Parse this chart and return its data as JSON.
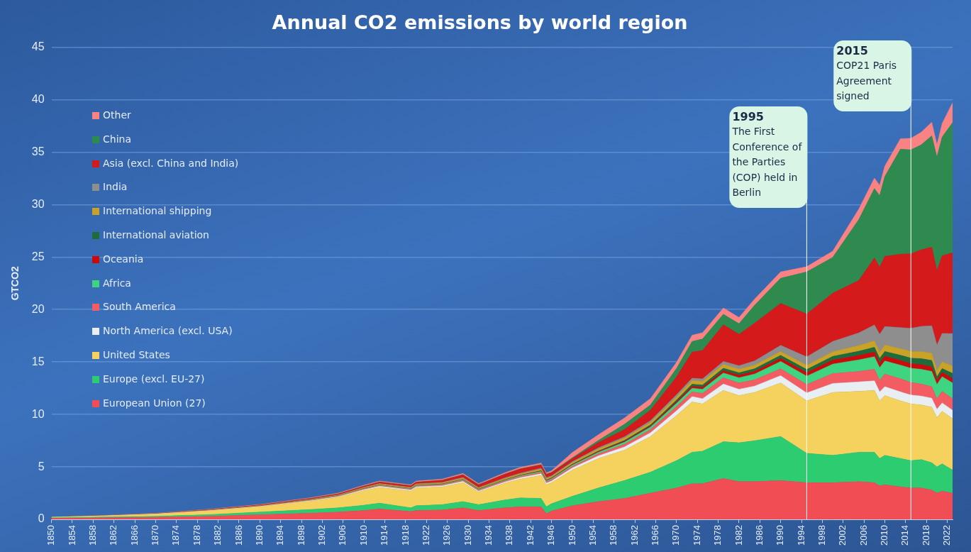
{
  "chart_data": {
    "type": "area",
    "title": "Annual CO2 emissions by world region",
    "ylabel": "GTCO2",
    "stacked": true,
    "grid": "y",
    "legend": "top left",
    "x": [
      1850,
      1860,
      1870,
      1880,
      1890,
      1900,
      1905,
      1910,
      1913,
      1919,
      1920,
      1925,
      1929,
      1932,
      1937,
      1940,
      1944,
      1945,
      1946,
      1950,
      1955,
      1960,
      1965,
      1970,
      1973,
      1975,
      1979,
      1982,
      1985,
      1990,
      1995,
      2000,
      2005,
      2008,
      2009,
      2010,
      2013,
      2015,
      2017,
      2019,
      2020,
      2021,
      2023
    ],
    "xlim": [
      1850,
      2023
    ],
    "xticks": [
      1850,
      1854,
      1858,
      1862,
      1866,
      1870,
      1874,
      1878,
      1882,
      1886,
      1890,
      1894,
      1898,
      1902,
      1906,
      1910,
      1914,
      1918,
      1922,
      1926,
      1930,
      1934,
      1938,
      1942,
      1946,
      1950,
      1954,
      1958,
      1962,
      1966,
      1970,
      1974,
      1978,
      1982,
      1986,
      1990,
      1994,
      1998,
      2002,
      2006,
      2010,
      2014,
      2018,
      2022
    ],
    "ylim": [
      0,
      45
    ],
    "yticks": [
      0,
      5,
      10,
      15,
      20,
      25,
      30,
      35,
      40,
      45
    ],
    "series": [
      {
        "name": "European Union (27)",
        "color": "#f04d55",
        "values": [
          0.1,
          0.15,
          0.2,
          0.3,
          0.45,
          0.6,
          0.7,
          0.85,
          1.0,
          0.75,
          0.85,
          0.9,
          1.1,
          0.85,
          1.1,
          1.2,
          1.2,
          0.55,
          0.8,
          1.3,
          1.7,
          2.0,
          2.5,
          3.0,
          3.4,
          3.4,
          3.9,
          3.6,
          3.6,
          3.7,
          3.5,
          3.5,
          3.6,
          3.5,
          3.2,
          3.3,
          3.1,
          3.0,
          3.0,
          2.8,
          2.5,
          2.7,
          2.5
        ]
      },
      {
        "name": "Europe (excl. EU-27)",
        "color": "#2ecc71",
        "values": [
          0.05,
          0.08,
          0.1,
          0.15,
          0.25,
          0.35,
          0.4,
          0.5,
          0.55,
          0.35,
          0.45,
          0.5,
          0.6,
          0.55,
          0.75,
          0.85,
          0.8,
          0.65,
          0.7,
          0.9,
          1.3,
          1.7,
          2.0,
          2.6,
          3.0,
          3.1,
          3.5,
          3.7,
          3.9,
          4.2,
          2.8,
          2.6,
          2.8,
          2.9,
          2.6,
          2.8,
          2.7,
          2.6,
          2.7,
          2.6,
          2.5,
          2.6,
          2.2
        ]
      },
      {
        "name": "United States",
        "color": "#f5d25e",
        "values": [
          0.05,
          0.1,
          0.2,
          0.35,
          0.5,
          0.8,
          1.0,
          1.4,
          1.5,
          1.6,
          1.7,
          1.7,
          1.8,
          1.2,
          1.6,
          1.8,
          2.2,
          2.1,
          2.0,
          2.5,
          2.8,
          2.9,
          3.4,
          4.3,
          4.8,
          4.5,
          4.9,
          4.5,
          4.6,
          5.1,
          5.0,
          6.0,
          5.8,
          5.9,
          5.5,
          5.7,
          5.5,
          5.4,
          5.2,
          5.3,
          4.7,
          5.0,
          4.9
        ]
      },
      {
        "name": "North America (excl. USA)",
        "color": "#e8eef2",
        "values": [
          0,
          0,
          0.01,
          0.02,
          0.03,
          0.05,
          0.06,
          0.08,
          0.1,
          0.1,
          0.1,
          0.1,
          0.12,
          0.1,
          0.1,
          0.12,
          0.15,
          0.15,
          0.15,
          0.2,
          0.25,
          0.3,
          0.35,
          0.45,
          0.5,
          0.5,
          0.6,
          0.6,
          0.6,
          0.7,
          0.75,
          0.85,
          0.9,
          0.9,
          0.85,
          0.85,
          0.85,
          0.85,
          0.85,
          0.85,
          0.8,
          0.8,
          0.8
        ]
      },
      {
        "name": "South America",
        "color": "#f25c62",
        "values": [
          0,
          0,
          0,
          0.01,
          0.02,
          0.03,
          0.04,
          0.05,
          0.06,
          0.06,
          0.07,
          0.08,
          0.09,
          0.08,
          0.1,
          0.1,
          0.12,
          0.12,
          0.13,
          0.15,
          0.2,
          0.25,
          0.3,
          0.4,
          0.45,
          0.5,
          0.6,
          0.6,
          0.6,
          0.65,
          0.8,
          0.95,
          1.0,
          1.1,
          1.1,
          1.2,
          1.25,
          1.2,
          1.15,
          1.1,
          1.0,
          1.1,
          1.1
        ]
      },
      {
        "name": "Africa",
        "color": "#3fd47f",
        "values": [
          0,
          0,
          0,
          0.01,
          0.01,
          0.02,
          0.03,
          0.04,
          0.05,
          0.05,
          0.05,
          0.06,
          0.07,
          0.07,
          0.08,
          0.09,
          0.1,
          0.1,
          0.1,
          0.12,
          0.15,
          0.2,
          0.25,
          0.3,
          0.35,
          0.4,
          0.45,
          0.5,
          0.55,
          0.7,
          0.8,
          0.9,
          1.1,
          1.2,
          1.2,
          1.25,
          1.3,
          1.35,
          1.4,
          1.45,
          1.35,
          1.4,
          1.5
        ]
      },
      {
        "name": "Oceania",
        "color": "#cc0a0a",
        "values": [
          0,
          0,
          0,
          0.01,
          0.01,
          0.01,
          0.01,
          0.02,
          0.02,
          0.02,
          0.02,
          0.03,
          0.03,
          0.03,
          0.03,
          0.04,
          0.05,
          0.05,
          0.05,
          0.06,
          0.07,
          0.09,
          0.1,
          0.15,
          0.18,
          0.2,
          0.22,
          0.24,
          0.25,
          0.3,
          0.33,
          0.38,
          0.42,
          0.45,
          0.45,
          0.45,
          0.44,
          0.44,
          0.45,
          0.44,
          0.42,
          0.42,
          0.42
        ]
      },
      {
        "name": "International aviation",
        "color": "#1f6b3b",
        "values": [
          0,
          0,
          0,
          0,
          0,
          0,
          0,
          0,
          0,
          0,
          0,
          0,
          0,
          0,
          0,
          0.01,
          0.02,
          0.02,
          0.02,
          0.03,
          0.05,
          0.08,
          0.1,
          0.17,
          0.2,
          0.2,
          0.23,
          0.23,
          0.25,
          0.28,
          0.3,
          0.35,
          0.4,
          0.45,
          0.43,
          0.45,
          0.5,
          0.52,
          0.56,
          0.6,
          0.3,
          0.35,
          0.5
        ]
      },
      {
        "name": "International shipping",
        "color": "#c9a227",
        "values": [
          0,
          0,
          0.01,
          0.02,
          0.03,
          0.05,
          0.06,
          0.08,
          0.1,
          0.08,
          0.1,
          0.1,
          0.12,
          0.1,
          0.12,
          0.12,
          0.15,
          0.15,
          0.12,
          0.15,
          0.2,
          0.22,
          0.25,
          0.3,
          0.35,
          0.35,
          0.38,
          0.35,
          0.35,
          0.37,
          0.4,
          0.45,
          0.55,
          0.62,
          0.6,
          0.62,
          0.63,
          0.65,
          0.68,
          0.7,
          0.63,
          0.65,
          0.68
        ]
      },
      {
        "name": "India",
        "color": "#8e8e8e",
        "values": [
          0,
          0,
          0,
          0.01,
          0.01,
          0.02,
          0.02,
          0.03,
          0.03,
          0.04,
          0.04,
          0.05,
          0.06,
          0.05,
          0.06,
          0.07,
          0.09,
          0.09,
          0.08,
          0.08,
          0.1,
          0.12,
          0.16,
          0.2,
          0.22,
          0.24,
          0.27,
          0.32,
          0.4,
          0.58,
          0.8,
          0.98,
          1.2,
          1.5,
          1.7,
          1.75,
          2.0,
          2.2,
          2.4,
          2.6,
          2.4,
          2.7,
          3.1
        ]
      },
      {
        "name": "Asia (excl. China and India)",
        "color": "#d41a1a",
        "values": [
          0.01,
          0.02,
          0.03,
          0.04,
          0.06,
          0.08,
          0.1,
          0.12,
          0.15,
          0.15,
          0.16,
          0.2,
          0.25,
          0.25,
          0.35,
          0.4,
          0.3,
          0.3,
          0.3,
          0.3,
          0.5,
          0.7,
          1.0,
          1.7,
          2.5,
          2.7,
          3.5,
          3.0,
          3.6,
          4.0,
          4.1,
          4.6,
          5.0,
          6.4,
          6.4,
          6.7,
          7.0,
          7.1,
          7.3,
          7.5,
          7.1,
          7.4,
          7.7
        ]
      },
      {
        "name": "China",
        "color": "#2f8a50",
        "values": [
          0,
          0,
          0,
          0,
          0,
          0.01,
          0.01,
          0.01,
          0.01,
          0.02,
          0.02,
          0.02,
          0.03,
          0.03,
          0.03,
          0.03,
          0.04,
          0.03,
          0.03,
          0.08,
          0.2,
          0.5,
          0.5,
          0.8,
          1.0,
          1.1,
          1.0,
          1.0,
          1.7,
          2.4,
          4.0,
          3.4,
          5.8,
          6.6,
          6.8,
          7.6,
          10.0,
          9.9,
          10.0,
          10.6,
          10.8,
          11.3,
          12.4
        ]
      },
      {
        "name": "Other",
        "color": "#f98383",
        "values": [
          0.01,
          0.02,
          0.03,
          0.04,
          0.05,
          0.06,
          0.07,
          0.08,
          0.09,
          0.08,
          0.09,
          0.1,
          0.11,
          0.1,
          0.12,
          0.13,
          0.15,
          0.13,
          0.15,
          0.5,
          0.55,
          0.6,
          0.6,
          0.6,
          0.6,
          0.6,
          0.6,
          0.6,
          0.6,
          0.6,
          0.5,
          0.6,
          1.0,
          1.0,
          1.0,
          1.0,
          1.0,
          1.1,
          1.2,
          1.3,
          1.2,
          1.3,
          1.9
        ]
      }
    ],
    "ref_lines": [
      {
        "axis": "x",
        "value": 1995,
        "label": "1995 The First Conference of the Parties (COP) held in Berlin",
        "color": "#ffffff"
      },
      {
        "axis": "x",
        "value": 2015,
        "label": "2015 COP21 Paris Agreement signed",
        "color": "#ffffff"
      }
    ]
  }
}
